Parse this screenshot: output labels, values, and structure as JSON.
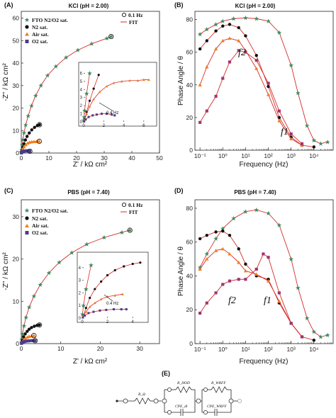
{
  "chart_data": [
    {
      "panel": "(A)",
      "title": "KCl (pH = 2.00)",
      "type": "scatter",
      "xlabel": "Z' / kΩ cm²",
      "ylabel": "-Z'' / kΩ cm²",
      "xlim": [
        0,
        50
      ],
      "ylim": [
        0,
        63
      ],
      "xticks": [
        "0",
        "10",
        "20",
        "30",
        "40",
        "50"
      ],
      "yticks": [
        "0",
        "10",
        "20",
        "30",
        "40",
        "50",
        "60"
      ],
      "legend": {
        "series": [
          "FTO N2/O2 sat.",
          "N2 sat.",
          "Air sat.",
          "O2 sat."
        ],
        "markers": [
          "0.1 Hz",
          "FIT"
        ]
      },
      "series": [
        {
          "name": "FTO N2/O2 sat.",
          "color": "#3d8a5f",
          "marker": "star",
          "x": [
            0.02,
            0.05,
            0.1,
            0.3,
            0.6,
            1,
            1.6,
            2.5,
            3.7,
            5.2,
            7.1,
            9.5,
            12.5,
            16.2,
            20.5,
            25.5,
            31,
            32.5
          ],
          "y": [
            0.2,
            0.6,
            1.4,
            3.5,
            6,
            9,
            12.5,
            16.5,
            21,
            25.5,
            30,
            34.5,
            38.5,
            42.5,
            45.8,
            48.6,
            51,
            51.8
          ]
        },
        {
          "name": "N2 sat.",
          "color": "#111111",
          "marker": "circle",
          "x": [
            0.1,
            0.3,
            0.6,
            1,
            1.5,
            2.1,
            2.9,
            3.8,
            4.8,
            5.8,
            6.6
          ],
          "y": [
            0.3,
            1.2,
            2.6,
            4.1,
            5.8,
            7.4,
            8.9,
            10.3,
            11.4,
            12.2,
            12.6
          ]
        },
        {
          "name": "Air sat.",
          "color": "#f07d1a",
          "marker": "triangle",
          "x": [
            0.1,
            0.3,
            0.6,
            1,
            1.6,
            2.3,
            3,
            3.8,
            4.6,
            5.4,
            6,
            6.5
          ],
          "y": [
            0.3,
            1,
            1.9,
            2.8,
            3.7,
            4.4,
            4.8,
            5,
            5.1,
            5.1,
            5.2,
            5.2
          ]
        },
        {
          "name": "O2 sat.",
          "color": "#4a3c8c",
          "marker": "square",
          "x": [
            0.05,
            0.2,
            0.5,
            0.9,
            1.3,
            1.8,
            2.3,
            2.8,
            3.1
          ],
          "y": [
            0.05,
            0.3,
            0.6,
            0.8,
            0.9,
            1,
            1,
            0.9,
            0.8
          ]
        }
      ],
      "annotations": [
        "0.4 Hz"
      ],
      "inset": {
        "xlim": [
          0,
          7
        ],
        "ylim": [
          0,
          7
        ],
        "xticks": [
          "0",
          "2",
          "4",
          "6"
        ],
        "yticks": [
          "0",
          "1",
          "2",
          "3",
          "4",
          "5",
          "6"
        ]
      }
    },
    {
      "panel": "(B)",
      "title": "KCl (pH = 2.00)",
      "type": "line",
      "xlabel": "Frequency (Hz)",
      "ylabel": "Phase Angle / θ",
      "xscale": "log",
      "xlim": [
        0.06,
        70000
      ],
      "ylim": [
        0,
        85
      ],
      "yticks": [
        "0",
        "20",
        "40",
        "60",
        "80"
      ],
      "xticks": [
        "10⁻¹",
        "10⁰",
        "10¹",
        "10²",
        "10³",
        "10⁴"
      ],
      "annotations": [
        "f2",
        "f1"
      ],
      "series": [
        {
          "name": "FTO N2/O2 sat.",
          "color": "#3d8a5f",
          "marker": "star",
          "x": [
            0.1,
            0.2,
            0.5,
            1,
            3,
            10,
            30,
            100,
            300,
            1000,
            2000,
            5000,
            10000,
            20000,
            40000
          ],
          "y": [
            71,
            74,
            77,
            79,
            80.5,
            81,
            80.5,
            79,
            72,
            52,
            35,
            15,
            6,
            4,
            5
          ]
        },
        {
          "name": "N2 sat.",
          "color": "#111111",
          "marker": "circle",
          "x": [
            0.1,
            0.2,
            0.5,
            1,
            2,
            5,
            10,
            30,
            100,
            300,
            1000,
            3000,
            10000
          ],
          "y": [
            62,
            67,
            73,
            76,
            77,
            75,
            70,
            58,
            39,
            20,
            8,
            3,
            2
          ]
        },
        {
          "name": "Air sat.",
          "color": "#f07d1a",
          "marker": "triangle",
          "x": [
            0.1,
            0.2,
            0.5,
            1,
            2,
            5,
            10,
            30,
            100,
            300,
            1000,
            3000
          ],
          "y": [
            40,
            51,
            62,
            67,
            68.5,
            67,
            61,
            50,
            34,
            18,
            7,
            3
          ]
        },
        {
          "name": "O2 sat.",
          "color": "#a0356e",
          "marker": "square",
          "x": [
            0.1,
            0.2,
            0.5,
            1,
            2,
            5,
            10,
            30,
            100,
            300,
            1000,
            3000
          ],
          "y": [
            17,
            24,
            33,
            44,
            54,
            61,
            60,
            55,
            41,
            24,
            10,
            4
          ]
        }
      ]
    },
    {
      "panel": "(C)",
      "title": "PBS (pH = 7.40)",
      "type": "scatter",
      "xlabel": "Z' / kΩ cm²",
      "ylabel": "-Z'' / kΩ cm²",
      "xlim": [
        0,
        35
      ],
      "ylim": [
        0,
        34
      ],
      "xticks": [
        "0",
        "10",
        "20",
        "30"
      ],
      "yticks": [
        "0",
        "10",
        "20",
        "30"
      ],
      "legend": {
        "series": [
          "FTO N2/O2 sat.",
          "N2 sat.",
          "Air sat.",
          "O2 sat."
        ],
        "markers": [
          "0.1 Hz",
          "FIT"
        ]
      },
      "series": [
        {
          "name": "FTO N2/O2 sat.",
          "color": "#3d8a5f",
          "marker": "star",
          "x": [
            0.02,
            0.1,
            0.3,
            0.7,
            1.2,
            2,
            3.2,
            4.8,
            7,
            9.6,
            12.8,
            16.6,
            21,
            25.5,
            27.5
          ],
          "y": [
            0.3,
            1,
            2.3,
            4.2,
            6.2,
            8.6,
            11.2,
            13.9,
            16.7,
            19.2,
            21.5,
            23.5,
            25.1,
            26.3,
            26.8
          ]
        },
        {
          "name": "N2 sat.",
          "color": "#111111",
          "marker": "circle",
          "x": [
            0.1,
            0.3,
            0.6,
            1,
            1.5,
            2,
            2.6,
            3.3,
            4,
            4.6
          ],
          "y": [
            0.2,
            0.8,
            1.6,
            2.3,
            2.9,
            3.4,
            3.8,
            4.1,
            4.3,
            4.4
          ]
        },
        {
          "name": "Air sat.",
          "color": "#f07d1a",
          "marker": "triangle",
          "x": [
            0.1,
            0.3,
            0.6,
            1,
            1.5,
            2,
            2.6,
            3.2
          ],
          "y": [
            0.2,
            0.5,
            0.9,
            1.2,
            1.5,
            1.7,
            1.8,
            1.9
          ]
        },
        {
          "name": "O2 sat.",
          "color": "#4a3c8c",
          "marker": "square",
          "x": [
            0.05,
            0.2,
            0.5,
            0.9,
            1.4,
            1.9,
            2.5,
            3.1,
            3.5
          ],
          "y": [
            0.05,
            0.2,
            0.4,
            0.5,
            0.6,
            0.65,
            0.7,
            0.7,
            0.7
          ]
        }
      ],
      "annotations": [
        "0.4 Hz"
      ],
      "inset": {
        "xlim": [
          0,
          5
        ],
        "ylim": [
          0,
          5
        ],
        "xticks": [
          "0",
          "2",
          "4"
        ],
        "yticks": [
          "0",
          "1",
          "2",
          "3",
          "4"
        ]
      }
    },
    {
      "panel": "(D)",
      "title": "PBS (pH = 7.40)",
      "type": "line",
      "xlabel": "Frequency (Hz)",
      "ylabel": "Phase Angle / θ",
      "xscale": "log",
      "xlim": [
        0.06,
        70000
      ],
      "ylim": [
        0,
        85
      ],
      "yticks": [
        "0",
        "20",
        "40",
        "60",
        "80"
      ],
      "xticks": [
        "10⁻¹",
        "10⁰",
        "10¹",
        "10²",
        "10³",
        "10⁴"
      ],
      "annotations": [
        "f2",
        "f1"
      ],
      "series": [
        {
          "name": "FTO N2/O2 sat.",
          "color": "#3d8a5f",
          "marker": "star",
          "x": [
            0.1,
            0.2,
            0.5,
            1,
            3,
            10,
            30,
            100,
            300,
            1000,
            2000,
            5000,
            10000,
            20000,
            40000
          ],
          "y": [
            45,
            53,
            62,
            68,
            74,
            78,
            79,
            77,
            70,
            50,
            33,
            15,
            7,
            4,
            5
          ]
        },
        {
          "name": "N2 sat.",
          "color": "#111111",
          "marker": "circle",
          "x": [
            0.1,
            0.2,
            0.5,
            1,
            2,
            5,
            10,
            30,
            100,
            300,
            1000,
            3000,
            10000
          ],
          "y": [
            62,
            64,
            66,
            66.5,
            64,
            56,
            47,
            40,
            38,
            24,
            12,
            4,
            2
          ]
        },
        {
          "name": "Air sat.",
          "color": "#f07d1a",
          "marker": "triangle",
          "x": [
            0.1,
            0.2,
            0.5,
            1,
            2,
            5,
            10,
            30,
            100,
            300,
            1000,
            3000
          ],
          "y": [
            44,
            50,
            55,
            56,
            53,
            48,
            43,
            41,
            37,
            25,
            12,
            4
          ]
        },
        {
          "name": "O2 sat.",
          "color": "#a0356e",
          "marker": "square",
          "x": [
            0.1,
            0.2,
            0.5,
            1,
            2,
            5,
            10,
            30,
            60,
            100,
            300,
            1000,
            3000
          ],
          "y": [
            18,
            24,
            30,
            35,
            37,
            38,
            38,
            44,
            53,
            51,
            30,
            12,
            4
          ]
        }
      ]
    }
  ],
  "circuit": {
    "panel": "(E)",
    "labels": {
      "rs": "R_Ω",
      "rhod": "R_HOD",
      "cpedl": "CPE_dl",
      "rwrff": "R_WRFF",
      "cpewrff": "CPE_WRFF"
    }
  }
}
